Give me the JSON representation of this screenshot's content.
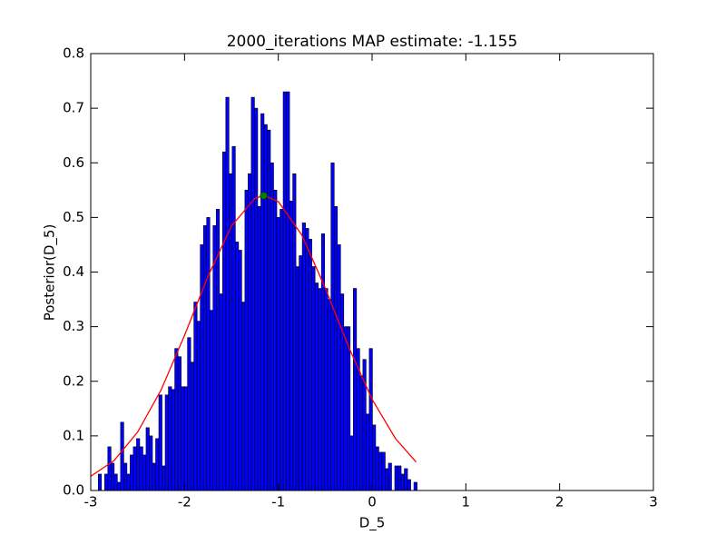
{
  "chart_data": {
    "type": "histogram",
    "title": "2000_iterations MAP estimate: -1.155",
    "x_label": "D_5",
    "y_label": "Posterior(D_5)",
    "color": "#0000ff",
    "bins": [
      -2.92,
      -2.886,
      -2.852,
      -2.818,
      -2.784,
      -2.75,
      -2.716,
      -2.682,
      -2.648,
      -2.614,
      -2.58,
      -2.546,
      -2.512,
      -2.478,
      -2.444,
      -2.41,
      -2.376,
      -2.342,
      -2.308,
      -2.274,
      -2.24,
      -2.206,
      -2.172,
      -2.138,
      -2.104,
      -2.07,
      -2.036,
      -2.002,
      -1.968,
      -1.934,
      -1.9,
      -1.866,
      -1.832,
      -1.798,
      -1.764,
      -1.73,
      -1.696,
      -1.662,
      -1.628,
      -1.594,
      -1.56,
      -1.526,
      -1.492,
      -1.458,
      -1.424,
      -1.39,
      -1.356,
      -1.322,
      -1.288,
      -1.254,
      -1.22,
      -1.186,
      -1.152,
      -1.118,
      -1.084,
      -1.05,
      -1.016,
      -0.982,
      -0.948,
      -0.914,
      -0.88,
      -0.846,
      -0.812,
      -0.778,
      -0.744,
      -0.71,
      -0.676,
      -0.642,
      -0.608,
      -0.574,
      -0.54,
      -0.506,
      -0.472,
      -0.438,
      -0.404,
      -0.37,
      -0.336,
      -0.302,
      -0.268,
      -0.234,
      -0.2,
      -0.166,
      -0.132,
      -0.098,
      -0.064,
      -0.03,
      0.004,
      0.038,
      0.072,
      0.106,
      0.14,
      0.174,
      0.208,
      0.242,
      0.276,
      0.31,
      0.344,
      0.378,
      0.412,
      0.446,
      0.48
    ],
    "values": [
      0.03,
      0,
      0.03,
      0.08,
      0.05,
      0.03,
      0.015,
      0.125,
      0.05,
      0.03,
      0.065,
      0.08,
      0.095,
      0.08,
      0.065,
      0.115,
      0.1,
      0.05,
      0.095,
      0.175,
      0.045,
      0.175,
      0.19,
      0.185,
      0.26,
      0.245,
      0.19,
      0.19,
      0.28,
      0.235,
      0.345,
      0.31,
      0.45,
      0.485,
      0.5,
      0.33,
      0.485,
      0.515,
      0.36,
      0.62,
      0.72,
      0.58,
      0.63,
      0.455,
      0.44,
      0.345,
      0.55,
      0.58,
      0.72,
      0.7,
      0.52,
      0.69,
      0.67,
      0.66,
      0.6,
      0.55,
      0.5,
      0.515,
      0.73,
      0.73,
      0.53,
      0.58,
      0.41,
      0.43,
      0.49,
      0.48,
      0.46,
      0.41,
      0.38,
      0.37,
      0.47,
      0.37,
      0.35,
      0.6,
      0.52,
      0.45,
      0.36,
      0.3,
      0.3,
      0.1,
      0.37,
      0.26,
      0.21,
      0.24,
      0.14,
      0.26,
      0.12,
      0.08,
      0.07,
      0.07,
      0.04,
      0.05,
      0,
      0.045,
      0.045,
      0.03,
      0.04,
      0.02,
      0,
      0.015
    ],
    "curve": {
      "color": "#ff0000",
      "x": [
        -3,
        -2.75,
        -2.5,
        -2.25,
        -2,
        -1.75,
        -1.5,
        -1.25,
        -1.15,
        -1,
        -0.75,
        -0.5,
        -0.25,
        0,
        0.25,
        0.47
      ],
      "values": [
        0.026,
        0.055,
        0.107,
        0.184,
        0.284,
        0.392,
        0.484,
        0.535,
        0.54,
        0.529,
        0.468,
        0.371,
        0.263,
        0.167,
        0.095,
        0.052
      ]
    },
    "map_point": {
      "color": "#008000",
      "x": -1.155,
      "value": 0.54
    },
    "xlim": [
      -3,
      3
    ],
    "xticks": [
      -3,
      -2,
      -1,
      0,
      1,
      2,
      3
    ],
    "ylim": [
      0,
      0.8
    ],
    "yticks": [
      {
        "value": 0,
        "label": "0.0"
      },
      0.1,
      0.2,
      0.3,
      0.4,
      0.5,
      0.6,
      0.7,
      0.8
    ]
  }
}
